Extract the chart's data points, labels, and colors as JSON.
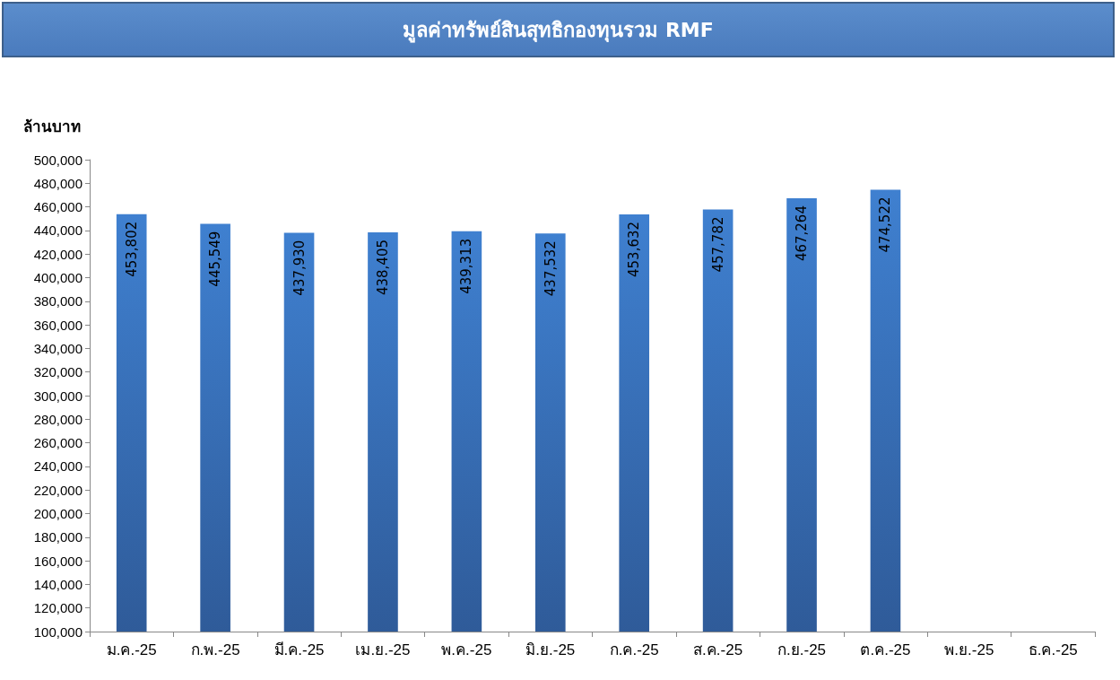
{
  "chart_data": {
    "type": "bar",
    "title": "มูลค่าทรัพย์สินสุทธิกองทุนรวม RMF",
    "ylabel": "ล้านบาท",
    "categories": [
      "ม.ค.-25",
      "ก.พ.-25",
      "มี.ค.-25",
      "เม.ย.-25",
      "พ.ค.-25",
      "มิ.ย.-25",
      "ก.ค.-25",
      "ส.ค.-25",
      "ก.ย.-25",
      "ต.ค.-25",
      "พ.ย.-25",
      "ธ.ค.-25"
    ],
    "values": [
      453802,
      445549,
      437930,
      438405,
      439313,
      437532,
      453632,
      457782,
      467264,
      474522,
      null,
      null
    ],
    "value_labels": [
      "453,802",
      "445,549",
      "437,930",
      "438,405",
      "439,313",
      "437,532",
      "453,632",
      "457,782",
      "467,264",
      "474,522",
      null,
      null
    ],
    "color": "#2f5b99",
    "ylim": [
      100000,
      500000
    ],
    "yticks": [
      {
        "value": 100000,
        "label": "100,000"
      },
      {
        "value": 120000,
        "label": "120,000"
      },
      {
        "value": 140000,
        "label": "140,000"
      },
      {
        "value": 160000,
        "label": "160,000"
      },
      {
        "value": 180000,
        "label": "180,000"
      },
      {
        "value": 200000,
        "label": "200,000"
      },
      {
        "value": 220000,
        "label": "220,000"
      },
      {
        "value": 240000,
        "label": "240,000"
      },
      {
        "value": 260000,
        "label": "260,000"
      },
      {
        "value": 280000,
        "label": "280,000"
      },
      {
        "value": 300000,
        "label": "300,000"
      },
      {
        "value": 320000,
        "label": "320,000"
      },
      {
        "value": 340000,
        "label": "340,000"
      },
      {
        "value": 360000,
        "label": "360,000"
      },
      {
        "value": 380000,
        "label": "380,000"
      },
      {
        "value": 400000,
        "label": "400,000"
      },
      {
        "value": 420000,
        "label": "420,000"
      },
      {
        "value": 440000,
        "label": "440,000"
      },
      {
        "value": 460000,
        "label": "460,000"
      },
      {
        "value": 480000,
        "label": "480,000"
      },
      {
        "value": 500000,
        "label": "500,000"
      }
    ],
    "grid": false
  }
}
